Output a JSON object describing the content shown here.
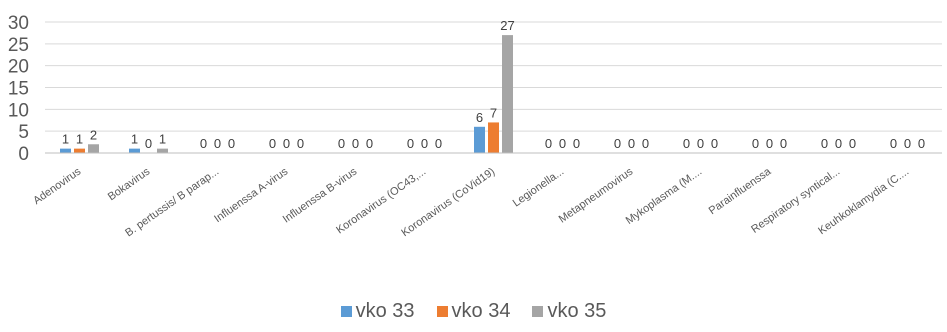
{
  "chart_data": {
    "type": "bar",
    "categories": [
      "Adenovirus",
      "Bokavirus",
      "B. pertussis/ B parap...",
      "Influenssa A-virus",
      "Influenssa B-virus",
      "Koronavirus (OC43,...",
      "Koronavirus (CoVid19)",
      "Legionella...",
      "Metapneumovirus",
      "Mykoplasma (M....",
      "Parainfluenssa",
      "Respiratory syntical...",
      "Keuhkoklamydia (C...."
    ],
    "series": [
      {
        "name": "vko 33",
        "color": "#5B9BD5",
        "values": [
          1,
          1,
          0,
          0,
          0,
          0,
          6,
          0,
          0,
          0,
          0,
          0,
          0
        ]
      },
      {
        "name": "vko 34",
        "color": "#ED7D31",
        "values": [
          1,
          0,
          0,
          0,
          0,
          0,
          7,
          0,
          0,
          0,
          0,
          0,
          0
        ]
      },
      {
        "name": "vko 35",
        "color": "#A5A5A5",
        "values": [
          2,
          1,
          0,
          0,
          0,
          0,
          27,
          0,
          0,
          0,
          0,
          0,
          0
        ]
      }
    ],
    "yticks": [
      "0",
      "5",
      "10",
      "15",
      "20",
      "25",
      "30"
    ],
    "ylim": [
      0,
      30
    ],
    "grid": true,
    "legend_position": "bottom"
  }
}
